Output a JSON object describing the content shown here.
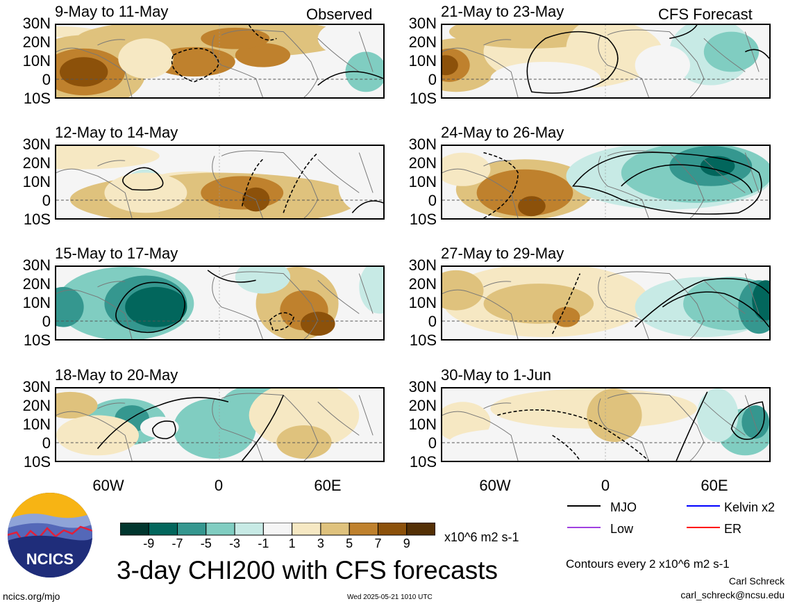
{
  "header": {
    "left": "Observed",
    "right": "CFS Forecast"
  },
  "chart_data": [
    {
      "type": "heatmap",
      "title": "9-May to 11-May",
      "group": "observed"
    },
    {
      "type": "heatmap",
      "title": "12-May to 14-May",
      "group": "observed"
    },
    {
      "type": "heatmap",
      "title": "15-May to 17-May",
      "group": "observed"
    },
    {
      "type": "heatmap",
      "title": "18-May to 20-May",
      "group": "observed"
    },
    {
      "type": "heatmap",
      "title": "21-May to 23-May",
      "group": "forecast"
    },
    {
      "type": "heatmap",
      "title": "24-May to 26-May",
      "group": "forecast"
    },
    {
      "type": "heatmap",
      "title": "27-May to 29-May",
      "group": "forecast"
    },
    {
      "type": "heatmap",
      "title": "30-May to 1-Jun",
      "group": "forecast"
    }
  ],
  "axes": {
    "lat_ticks": [
      "30N",
      "20N",
      "10N",
      "0",
      "10S"
    ],
    "lon_ticks": [
      "60W",
      "0",
      "60E"
    ]
  },
  "colorbar": {
    "ticks": [
      "-9",
      "-7",
      "-5",
      "-3",
      "-1",
      "1",
      "3",
      "5",
      "7",
      "9"
    ],
    "units": "x10^6 m2 s-1",
    "colors": [
      "#00362e",
      "#02665c",
      "#35978f",
      "#80cdc1",
      "#c7eae5",
      "#f5f5f5",
      "#f6e8c3",
      "#dfc27d",
      "#bf812d",
      "#8c510a",
      "#543005"
    ]
  },
  "legend": [
    {
      "label": "MJO",
      "color": "#000000"
    },
    {
      "label": "Kelvin x2",
      "color": "#0000ff"
    },
    {
      "label": "Low",
      "color": "#a040e0"
    },
    {
      "label": "ER",
      "color": "#ff0000"
    }
  ],
  "footer": {
    "main_title": "3-day CHI200 with CFS forecasts",
    "contours": "Contours every 2 x10^6 m2 s-1",
    "author": "Carl Schreck",
    "email": "carl_schreck@ncsu.edu",
    "url": "ncics.org/mjo",
    "timestamp": "Wed 2025-05-21 1010 UTC",
    "logo_text": "NCICS"
  }
}
